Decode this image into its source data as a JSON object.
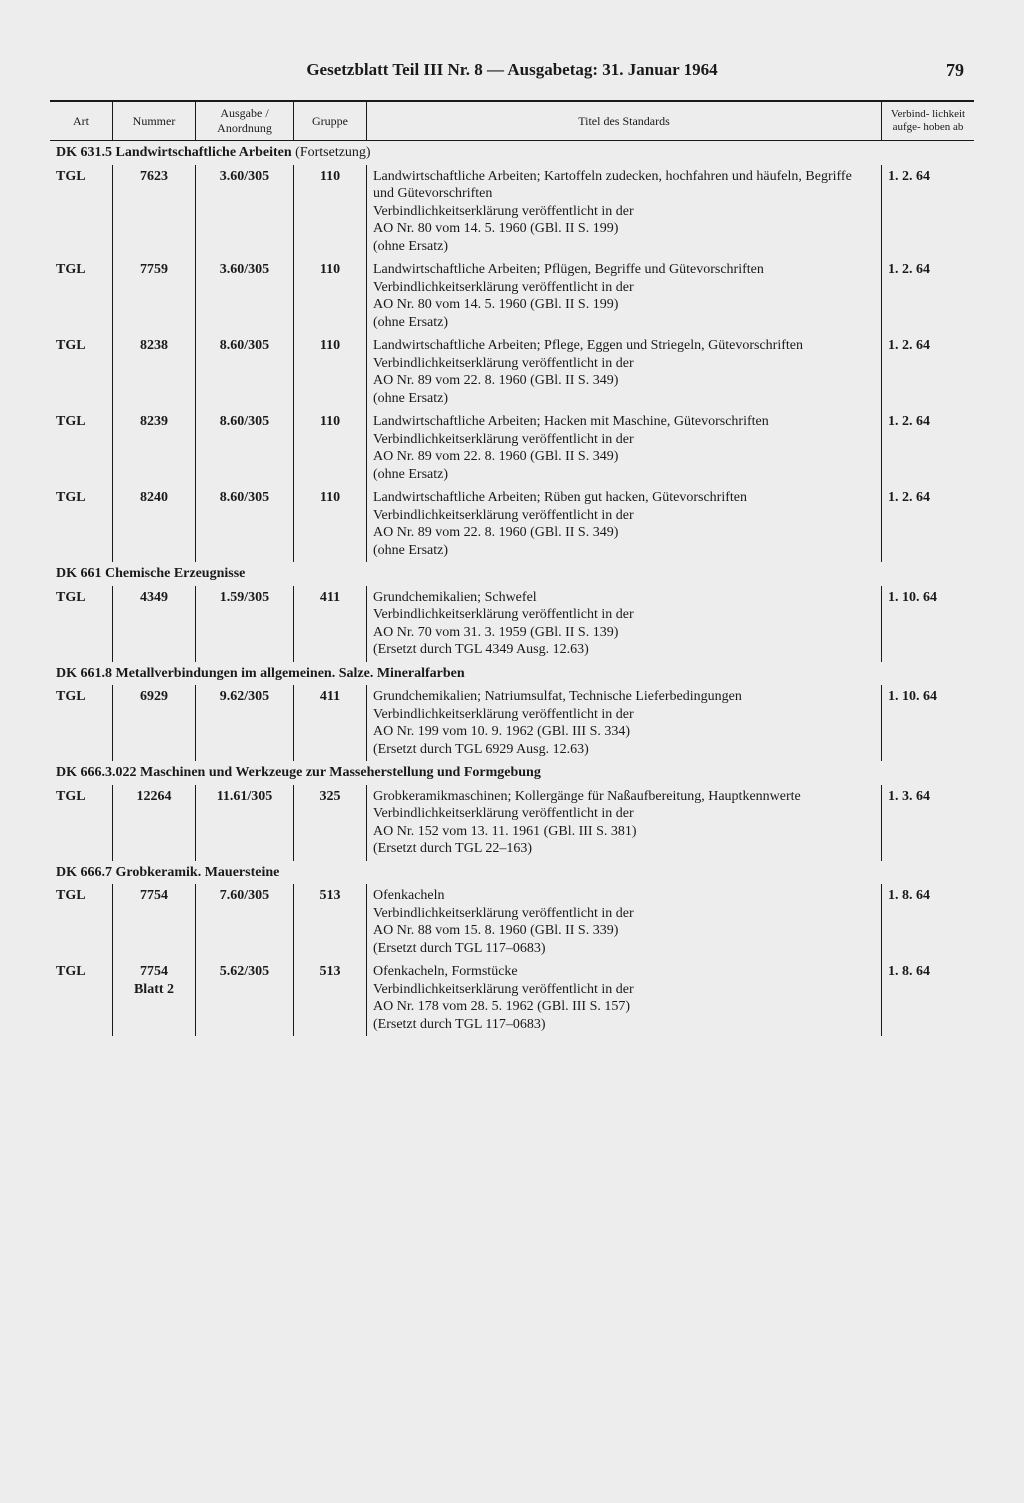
{
  "header": {
    "title": "Gesetzblatt Teil III Nr. 8 — Ausgabetag: 31. Januar 1964",
    "page_number": "79"
  },
  "columns": {
    "art": "Art",
    "nummer": "Nummer",
    "ausgabe": "Ausgabe / Anordnung",
    "gruppe": "Gruppe",
    "titel": "Titel des Standards",
    "verbind": "Verbind-\nlichkeit\naufge-\nhoben ab"
  },
  "sections": [
    {
      "heading": "DK 631.5 Landwirtschaftliche Arbeiten",
      "cont": "(Fortsetzung)",
      "rows": [
        {
          "art": "TGL",
          "nummer": "7623",
          "ausgabe": "3.60/305",
          "gruppe": "110",
          "titel": "Landwirtschaftliche Arbeiten; Kartoffeln zudecken, hochfahren und häufeln, Begriffe und Gütevorschriften\nVerbindlichkeitserklärung veröffentlicht in der\nAO Nr. 80 vom 14. 5. 1960 (GBl. II S. 199)\n(ohne Ersatz)",
          "date": "1.  2. 64"
        },
        {
          "art": "TGL",
          "nummer": "7759",
          "ausgabe": "3.60/305",
          "gruppe": "110",
          "titel": "Landwirtschaftliche Arbeiten; Pflügen, Begriffe und Gütevorschriften\nVerbindlichkeitserklärung veröffentlicht in der\nAO Nr. 80 vom 14. 5. 1960 (GBl. II S. 199)\n(ohne Ersatz)",
          "date": "1.  2. 64"
        },
        {
          "art": "TGL",
          "nummer": "8238",
          "ausgabe": "8.60/305",
          "gruppe": "110",
          "titel": "Landwirtschaftliche Arbeiten; Pflege, Eggen und Striegeln, Gütevorschriften\nVerbindlichkeitserklärung veröffentlicht in der\nAO Nr. 89 vom 22. 8. 1960 (GBl. II S. 349)\n(ohne Ersatz)",
          "date": "1.  2. 64"
        },
        {
          "art": "TGL",
          "nummer": "8239",
          "ausgabe": "8.60/305",
          "gruppe": "110",
          "titel": "Landwirtschaftliche Arbeiten; Hacken mit Maschine, Gütevorschriften\nVerbindlichkeitserklärung veröffentlicht in der\nAO Nr. 89 vom 22. 8. 1960 (GBl. II S. 349)\n(ohne Ersatz)",
          "date": "1.  2. 64"
        },
        {
          "art": "TGL",
          "nummer": "8240",
          "ausgabe": "8.60/305",
          "gruppe": "110",
          "titel": "Landwirtschaftliche Arbeiten; Rüben gut hacken, Gütevorschriften\nVerbindlichkeitserklärung veröffentlicht in der\nAO Nr. 89 vom 22. 8. 1960 (GBl. II S. 349)\n(ohne Ersatz)",
          "date": "1.  2. 64"
        }
      ]
    },
    {
      "heading": "DK 661 Chemische Erzeugnisse",
      "cont": "",
      "rows": [
        {
          "art": "TGL",
          "nummer": "4349",
          "ausgabe": "1.59/305",
          "gruppe": "411",
          "titel": "Grundchemikalien; Schwefel\nVerbindlichkeitserklärung veröffentlicht in der\nAO Nr. 70 vom 31. 3. 1959 (GBl. II S. 139)\n(Ersetzt durch TGL 4349 Ausg. 12.63)",
          "date": "1. 10. 64"
        }
      ]
    },
    {
      "heading": "DK 661.8 Metallverbindungen im allgemeinen. Salze. Mineralfarben",
      "cont": "",
      "rows": [
        {
          "art": "TGL",
          "nummer": "6929",
          "ausgabe": "9.62/305",
          "gruppe": "411",
          "titel": "Grundchemikalien; Natriumsulfat, Technische Lieferbedingungen\nVerbindlichkeitserklärung veröffentlicht in der\nAO Nr. 199 vom 10. 9. 1962 (GBl. III S. 334)\n(Ersetzt durch TGL 6929 Ausg. 12.63)",
          "date": "1. 10. 64"
        }
      ]
    },
    {
      "heading": "DK 666.3.022 Maschinen und Werkzeuge zur Masseherstellung und Formgebung",
      "cont": "",
      "rows": [
        {
          "art": "TGL",
          "nummer": "12264",
          "ausgabe": "11.61/305",
          "gruppe": "325",
          "titel": "Grobkeramikmaschinen; Kollergänge für Naßaufbereitung, Hauptkennwerte\nVerbindlichkeitserklärung veröffentlicht in der\nAO Nr. 152 vom 13. 11. 1961 (GBl. III S. 381)\n(Ersetzt durch TGL 22–163)",
          "date": "1.  3. 64"
        }
      ]
    },
    {
      "heading": "DK 666.7 Grobkeramik. Mauersteine",
      "cont": "",
      "rows": [
        {
          "art": "TGL",
          "nummer": "7754",
          "ausgabe": "7.60/305",
          "gruppe": "513",
          "titel": "Ofenkacheln\nVerbindlichkeitserklärung veröffentlicht in der\nAO Nr. 88 vom 15. 8. 1960 (GBl. II S. 339)\n(Ersetzt durch TGL 117–0683)",
          "date": "1.  8. 64"
        },
        {
          "art": "TGL",
          "nummer": "7754\nBlatt 2",
          "ausgabe": "5.62/305",
          "gruppe": "513",
          "titel": "Ofenkacheln, Formstücke\nVerbindlichkeitserklärung veröffentlicht in der\nAO Nr. 178 vom 28. 5. 1962 (GBl. III S. 157)\n(Ersetzt durch TGL 117–0683)",
          "date": "1.  8. 64"
        }
      ]
    }
  ]
}
